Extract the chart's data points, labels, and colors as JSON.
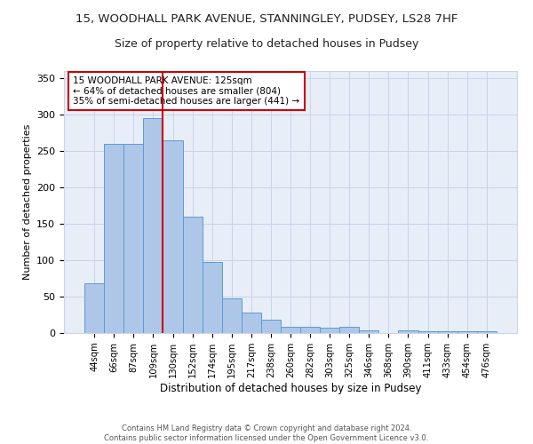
{
  "title1": "15, WOODHALL PARK AVENUE, STANNINGLEY, PUDSEY, LS28 7HF",
  "title2": "Size of property relative to detached houses in Pudsey",
  "xlabel": "Distribution of detached houses by size in Pudsey",
  "ylabel": "Number of detached properties",
  "categories": [
    "44sqm",
    "66sqm",
    "87sqm",
    "109sqm",
    "130sqm",
    "152sqm",
    "174sqm",
    "195sqm",
    "217sqm",
    "238sqm",
    "260sqm",
    "282sqm",
    "303sqm",
    "325sqm",
    "346sqm",
    "368sqm",
    "390sqm",
    "411sqm",
    "433sqm",
    "454sqm",
    "476sqm"
  ],
  "values": [
    68,
    260,
    260,
    295,
    265,
    160,
    98,
    48,
    28,
    18,
    9,
    9,
    7,
    9,
    4,
    0,
    4,
    3,
    3,
    3,
    3
  ],
  "bar_color": "#aec6e8",
  "bar_edge_color": "#5b9bd5",
  "grid_color": "#c8d4e8",
  "property_line_color": "#cc0000",
  "annotation_text": "15 WOODHALL PARK AVENUE: 125sqm\n← 64% of detached houses are smaller (804)\n35% of semi-detached houses are larger (441) →",
  "annotation_box_color": "#ffffff",
  "annotation_box_edge": "#cc0000",
  "ylim": [
    0,
    360
  ],
  "yticks": [
    0,
    50,
    100,
    150,
    200,
    250,
    300,
    350
  ],
  "footnote": "Contains HM Land Registry data © Crown copyright and database right 2024.\nContains public sector information licensed under the Open Government Licence v3.0.",
  "background_color": "#e8eef8",
  "fig_background": "#ffffff",
  "title1_fontsize": 9.5,
  "title2_fontsize": 9
}
